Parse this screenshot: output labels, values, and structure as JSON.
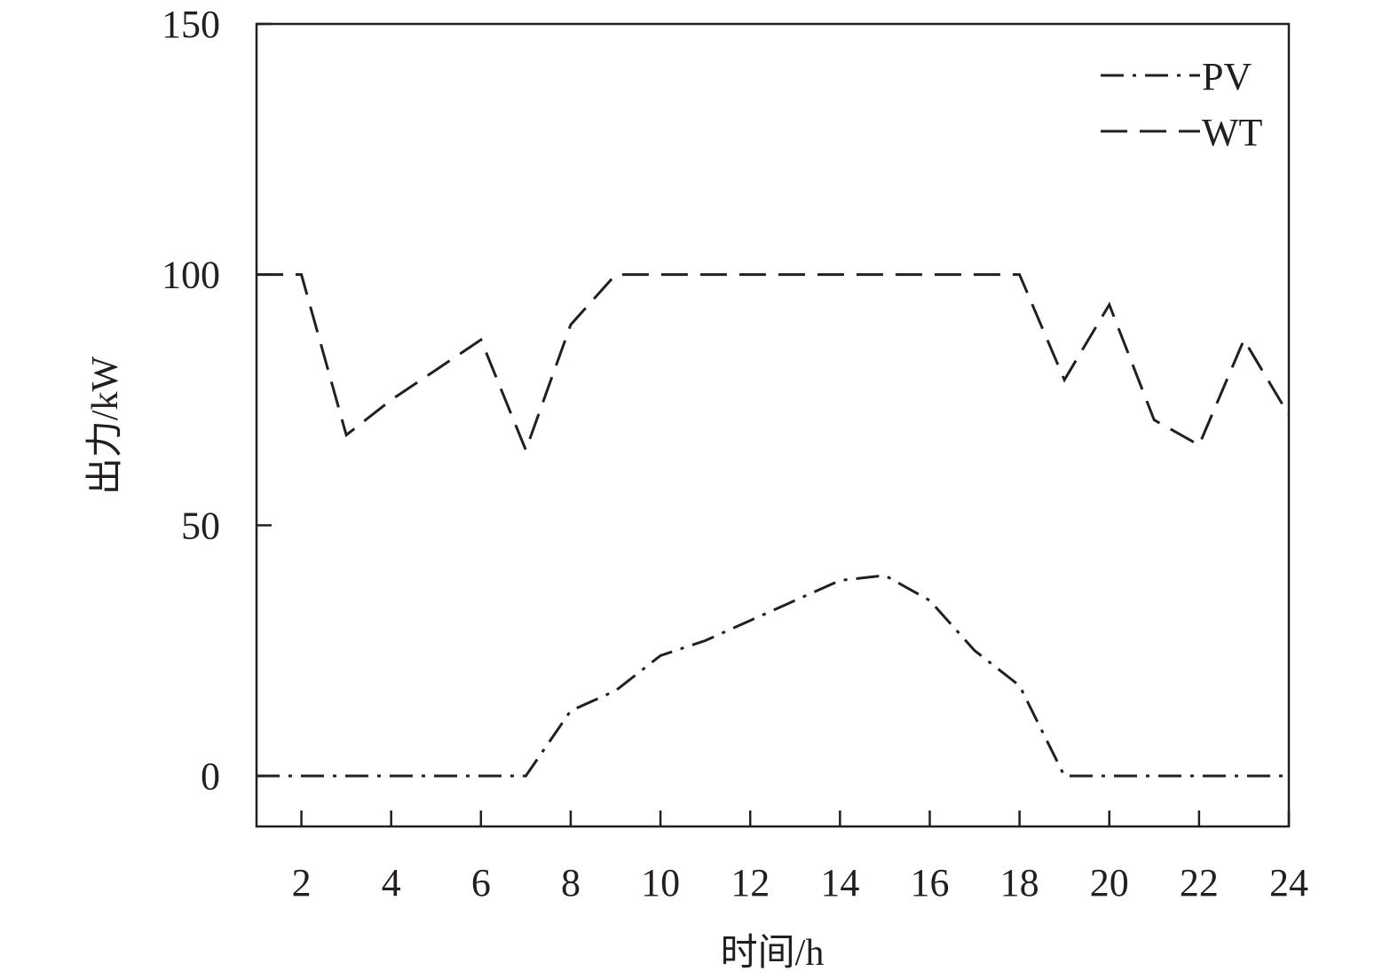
{
  "chart_data": {
    "type": "line",
    "title": "",
    "xlabel": "时间/h",
    "ylabel": "出力/kW",
    "xlim": [
      1,
      24
    ],
    "ylim": [
      -10,
      150
    ],
    "xticks": [
      2,
      4,
      6,
      8,
      10,
      12,
      14,
      16,
      18,
      20,
      22,
      24
    ],
    "yticks": [
      0,
      50,
      100,
      150
    ],
    "grid": false,
    "legend_position": "top-right",
    "x": [
      1,
      2,
      3,
      4,
      5,
      6,
      7,
      8,
      9,
      10,
      11,
      12,
      13,
      14,
      15,
      16,
      17,
      18,
      19,
      20,
      21,
      22,
      23,
      24
    ],
    "series": [
      {
        "name": "PV",
        "style": "dash-dot",
        "color": "#231f20",
        "values": [
          0,
          0,
          0,
          0,
          0,
          0,
          0,
          13,
          17,
          24,
          27,
          31,
          35,
          39,
          40,
          35,
          25,
          18,
          0,
          0,
          0,
          0,
          0,
          0
        ]
      },
      {
        "name": "WT",
        "style": "dashed",
        "color": "#231f20",
        "values": [
          100,
          100,
          68,
          75,
          81,
          87,
          65,
          90,
          100,
          100,
          100,
          100,
          100,
          100,
          100,
          100,
          100,
          100,
          79,
          94,
          71,
          66,
          87,
          72
        ]
      }
    ]
  }
}
